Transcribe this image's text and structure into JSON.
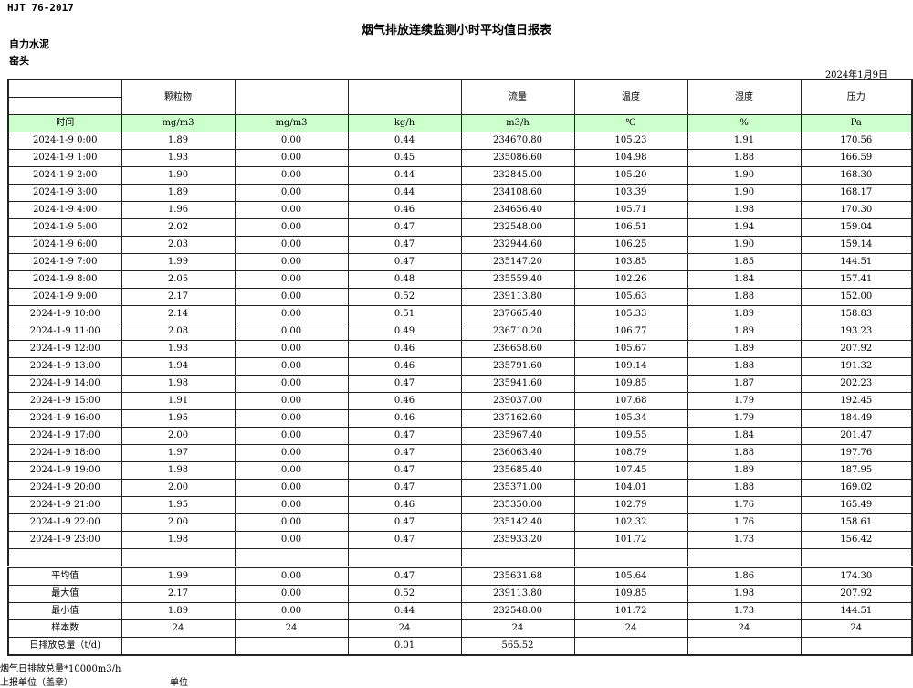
{
  "standard": "HJT  76-2017",
  "title": "烟气排放连续监测小时平均值日报表",
  "company": "自力水泥",
  "unit_name": "窑头",
  "date": "2024年1月9日",
  "headers": [
    "",
    "颗粒物",
    "",
    "",
    "流量",
    "温度",
    "湿度",
    "压力"
  ],
  "units": [
    "时间",
    "mg/m3",
    "mg/m3",
    "kg/h",
    "m3/h",
    "℃",
    "%",
    "Pa"
  ],
  "rows": [
    [
      "2024-1-9 0:00",
      "1.89",
      "0.00",
      "0.44",
      "234670.80",
      "105.23",
      "1.91",
      "170.56"
    ],
    [
      "2024-1-9 1:00",
      "1.93",
      "0.00",
      "0.45",
      "235086.60",
      "104.98",
      "1.88",
      "166.59"
    ],
    [
      "2024-1-9 2:00",
      "1.90",
      "0.00",
      "0.44",
      "232845.00",
      "105.20",
      "1.90",
      "168.30"
    ],
    [
      "2024-1-9 3:00",
      "1.89",
      "0.00",
      "0.44",
      "234108.60",
      "103.39",
      "1.90",
      "168.17"
    ],
    [
      "2024-1-9 4:00",
      "1.96",
      "0.00",
      "0.46",
      "234656.40",
      "105.71",
      "1.98",
      "170.30"
    ],
    [
      "2024-1-9 5:00",
      "2.02",
      "0.00",
      "0.47",
      "232548.00",
      "106.51",
      "1.94",
      "159.04"
    ],
    [
      "2024-1-9 6:00",
      "2.03",
      "0.00",
      "0.47",
      "232944.60",
      "106.25",
      "1.90",
      "159.14"
    ],
    [
      "2024-1-9 7:00",
      "1.99",
      "0.00",
      "0.47",
      "235147.20",
      "103.85",
      "1.85",
      "144.51"
    ],
    [
      "2024-1-9 8:00",
      "2.05",
      "0.00",
      "0.48",
      "235559.40",
      "102.26",
      "1.84",
      "157.41"
    ],
    [
      "2024-1-9 9:00",
      "2.17",
      "0.00",
      "0.52",
      "239113.80",
      "105.63",
      "1.88",
      "152.00"
    ],
    [
      "2024-1-9 10:00",
      "2.14",
      "0.00",
      "0.51",
      "237665.40",
      "105.33",
      "1.89",
      "158.83"
    ],
    [
      "2024-1-9 11:00",
      "2.08",
      "0.00",
      "0.49",
      "236710.20",
      "106.77",
      "1.89",
      "193.23"
    ],
    [
      "2024-1-9 12:00",
      "1.93",
      "0.00",
      "0.46",
      "236658.60",
      "105.67",
      "1.89",
      "207.92"
    ],
    [
      "2024-1-9 13:00",
      "1.94",
      "0.00",
      "0.46",
      "235791.60",
      "109.14",
      "1.88",
      "191.32"
    ],
    [
      "2024-1-9 14:00",
      "1.98",
      "0.00",
      "0.47",
      "235941.60",
      "109.85",
      "1.87",
      "202.23"
    ],
    [
      "2024-1-9 15:00",
      "1.91",
      "0.00",
      "0.46",
      "239037.00",
      "107.68",
      "1.79",
      "192.45"
    ],
    [
      "2024-1-9 16:00",
      "1.95",
      "0.00",
      "0.46",
      "237162.60",
      "105.34",
      "1.79",
      "184.49"
    ],
    [
      "2024-1-9 17:00",
      "2.00",
      "0.00",
      "0.47",
      "235967.40",
      "109.55",
      "1.84",
      "201.47"
    ],
    [
      "2024-1-9 18:00",
      "1.97",
      "0.00",
      "0.47",
      "236063.40",
      "108.79",
      "1.88",
      "197.76"
    ],
    [
      "2024-1-9 19:00",
      "1.98",
      "0.00",
      "0.47",
      "235685.40",
      "107.45",
      "1.89",
      "187.95"
    ],
    [
      "2024-1-9 20:00",
      "2.00",
      "0.00",
      "0.47",
      "235371.00",
      "104.01",
      "1.88",
      "169.02"
    ],
    [
      "2024-1-9 21:00",
      "1.95",
      "0.00",
      "0.46",
      "235350.00",
      "102.79",
      "1.76",
      "165.49"
    ],
    [
      "2024-1-9 22:00",
      "2.00",
      "0.00",
      "0.47",
      "235142.40",
      "102.32",
      "1.76",
      "158.61"
    ],
    [
      "2024-1-9 23:00",
      "1.98",
      "0.00",
      "0.47",
      "235933.20",
      "101.72",
      "1.73",
      "156.42"
    ]
  ],
  "summary": [
    [
      "平均值",
      "1.99",
      "0.00",
      "0.47",
      "235631.68",
      "105.64",
      "1.86",
      "174.30"
    ],
    [
      "最大值",
      "2.17",
      "0.00",
      "0.52",
      "239113.80",
      "109.85",
      "1.98",
      "207.92"
    ],
    [
      "最小值",
      "1.89",
      "0.00",
      "0.44",
      "232548.00",
      "101.72",
      "1.73",
      "144.51"
    ],
    [
      "样本数",
      "24",
      "24",
      "24",
      "24",
      "24",
      "24",
      "24"
    ],
    [
      "日排放总量（t/d)",
      "",
      "",
      "0.01",
      "565.52",
      "",
      "",
      ""
    ]
  ],
  "footer": {
    "note": "烟气日排放总量*10000m3/h",
    "reporter_label": "上报单位（盖章）",
    "reporter_value": "单位"
  }
}
